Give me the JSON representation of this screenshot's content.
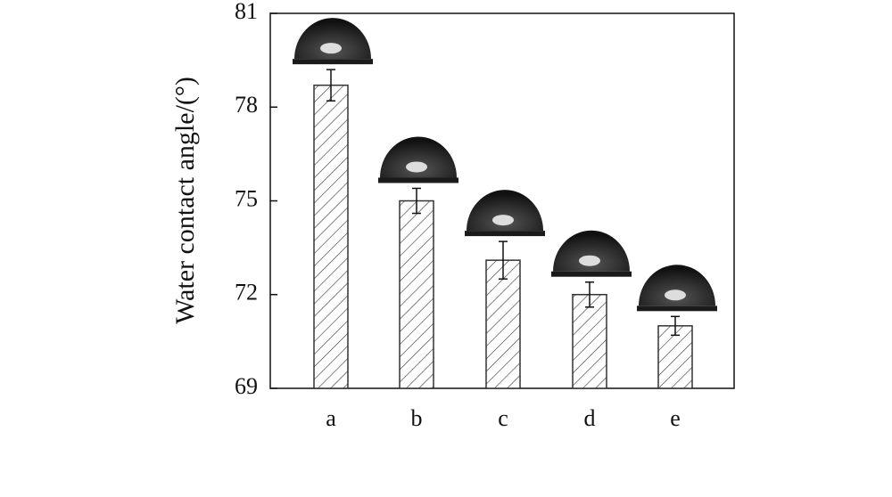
{
  "chart_data": {
    "type": "bar",
    "y_label": "Water contact angle/(°)",
    "categories": [
      "a",
      "b",
      "c",
      "d",
      "e"
    ],
    "values": [
      78.7,
      75.0,
      73.1,
      72.0,
      71.0
    ],
    "errors": [
      0.5,
      0.4,
      0.6,
      0.4,
      0.3
    ],
    "ylim": [
      69,
      81
    ],
    "yticks": [
      69,
      72,
      75,
      78,
      81
    ],
    "color": "#333333"
  }
}
